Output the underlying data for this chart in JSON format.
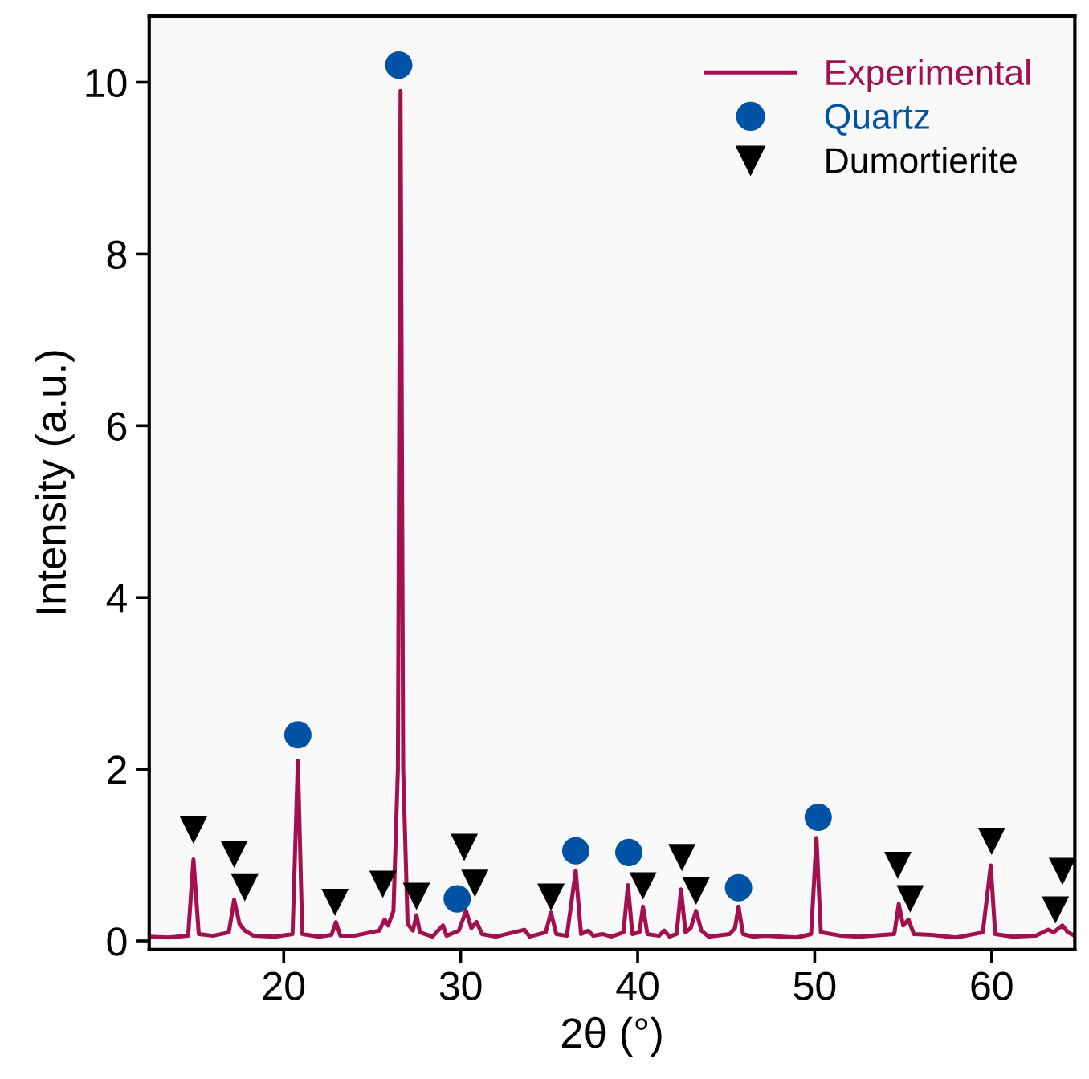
{
  "chart_data": {
    "type": "line",
    "xlabel": "2θ (°)",
    "ylabel": "Intensity (a.u.)",
    "xlim": [
      12.4,
      64.7
    ],
    "ylim": [
      -0.1,
      10.77
    ],
    "xticks": [
      20,
      30,
      40,
      50,
      60
    ],
    "yticks": [
      0,
      2,
      4,
      6,
      8,
      10
    ],
    "grid": false,
    "legend": "top right",
    "series": [
      {
        "name": "Experimental",
        "color": "#a3104f",
        "marker": "none",
        "line_style": "solid",
        "x": [
          12.4,
          13.5,
          14.6,
          14.9,
          15.2,
          16,
          16.9,
          17.2,
          17.5,
          17.8,
          18.3,
          19.5,
          20.5,
          20.8,
          21.05,
          22,
          22.7,
          22.95,
          23.2,
          24,
          24.9,
          25.4,
          25.7,
          25.9,
          26.2,
          26.45,
          26.6,
          26.75,
          27.0,
          27.3,
          27.5,
          27.7,
          28.4,
          29.0,
          29.2,
          29.9,
          30.3,
          30.6,
          30.9,
          31.2,
          32,
          33.6,
          33.9,
          34.8,
          35.1,
          35.4,
          36.0,
          36.5,
          36.8,
          37.2,
          37.5,
          38.0,
          38.5,
          39.2,
          39.45,
          39.7,
          40.1,
          40.3,
          40.55,
          41.2,
          41.5,
          41.8,
          42.2,
          42.45,
          42.7,
          43.0,
          43.3,
          43.6,
          44.0,
          45.2,
          45.5,
          45.7,
          45.95,
          46.5,
          47.2,
          48.2,
          49.0,
          49.8,
          50.1,
          50.35,
          51.5,
          52.5,
          54.5,
          54.75,
          55.0,
          55.3,
          55.6,
          56.6,
          58.0,
          59.5,
          59.95,
          60.2,
          61.2,
          62.5,
          63.2,
          63.5,
          64.0,
          64.3,
          64.7
        ],
        "values": [
          0.05,
          0.04,
          0.06,
          0.95,
          0.08,
          0.06,
          0.1,
          0.48,
          0.2,
          0.12,
          0.06,
          0.05,
          0.08,
          2.1,
          0.08,
          0.05,
          0.07,
          0.22,
          0.06,
          0.06,
          0.1,
          0.12,
          0.25,
          0.18,
          0.35,
          2.0,
          9.9,
          2.0,
          0.2,
          0.12,
          0.3,
          0.1,
          0.05,
          0.18,
          0.06,
          0.12,
          0.35,
          0.15,
          0.22,
          0.08,
          0.05,
          0.13,
          0.05,
          0.1,
          0.33,
          0.08,
          0.06,
          0.82,
          0.08,
          0.12,
          0.06,
          0.08,
          0.05,
          0.1,
          0.65,
          0.08,
          0.1,
          0.4,
          0.08,
          0.06,
          0.12,
          0.05,
          0.08,
          0.6,
          0.1,
          0.15,
          0.35,
          0.12,
          0.05,
          0.08,
          0.15,
          0.4,
          0.08,
          0.05,
          0.06,
          0.05,
          0.04,
          0.08,
          1.2,
          0.1,
          0.06,
          0.05,
          0.08,
          0.43,
          0.18,
          0.25,
          0.08,
          0.07,
          0.04,
          0.1,
          0.88,
          0.08,
          0.05,
          0.06,
          0.13,
          0.1,
          0.18,
          0.1,
          0.06
        ]
      },
      {
        "name": "Quartz",
        "type": "scatter",
        "color": "#0052a5",
        "marker": "circle",
        "x": [
          20.8,
          26.5,
          29.8,
          36.5,
          39.5,
          45.7,
          50.2
        ],
        "values": [
          2.4,
          10.2,
          0.49,
          1.05,
          1.03,
          0.62,
          1.44
        ]
      },
      {
        "name": "Dumortierite",
        "type": "scatter",
        "color": "#000000",
        "marker": "triangle",
        "x": [
          14.9,
          17.2,
          17.8,
          22.9,
          25.6,
          27.5,
          30.2,
          30.8,
          35.1,
          40.3,
          42.5,
          43.3,
          54.7,
          55.4,
          60.0,
          64.0,
          63.6
        ],
        "values": [
          1.29,
          1.01,
          0.62,
          0.45,
          0.66,
          0.52,
          1.09,
          0.67,
          0.51,
          0.64,
          0.97,
          0.58,
          0.88,
          0.49,
          1.16,
          0.81,
          0.36
        ]
      }
    ]
  }
}
